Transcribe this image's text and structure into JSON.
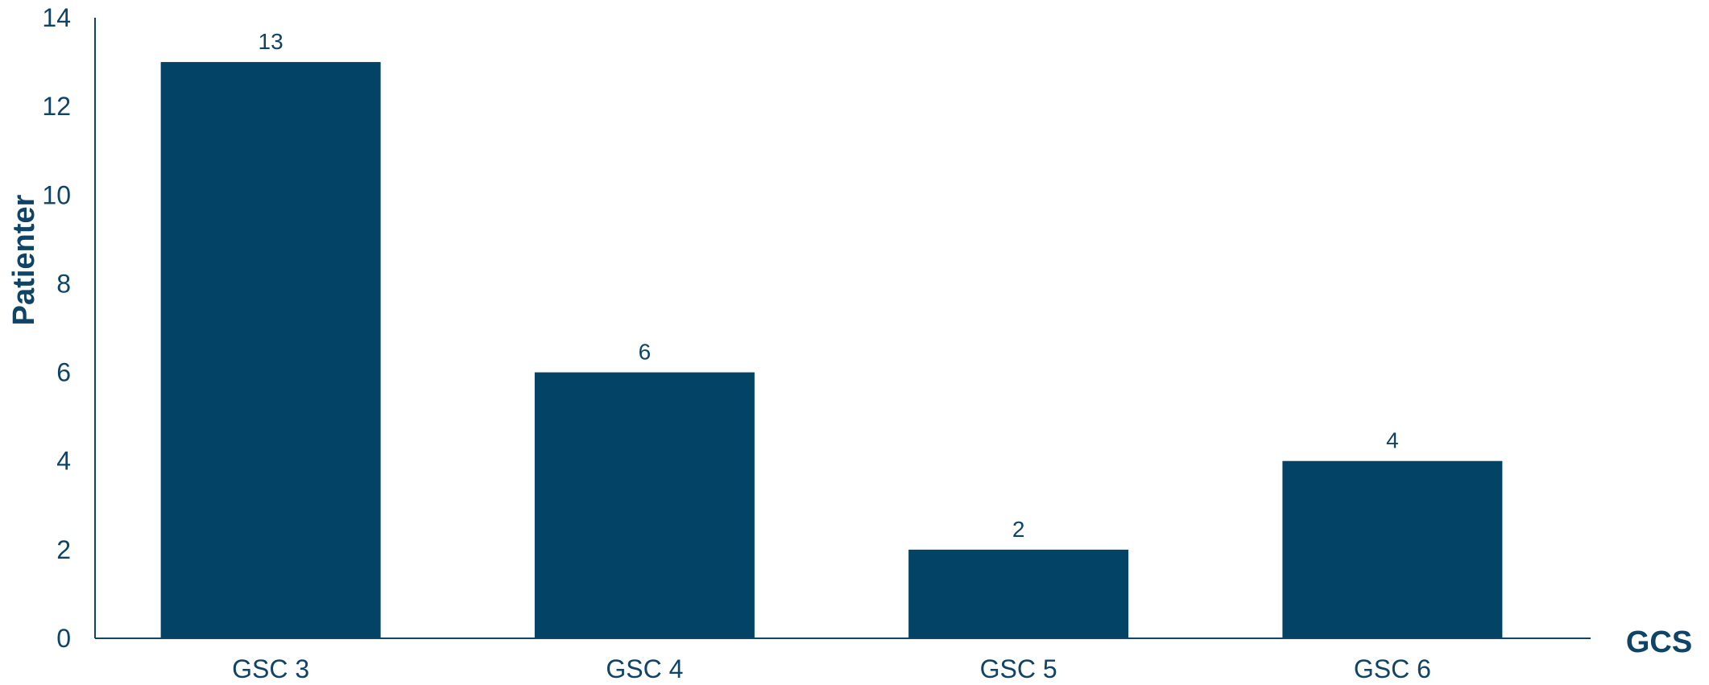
{
  "chart_data": {
    "type": "bar",
    "categories": [
      "GSC 3",
      "GSC 4",
      "GSC 5",
      "GSC 6"
    ],
    "values": [
      13,
      6,
      2,
      4
    ],
    "data_labels": [
      "13",
      "6",
      "2",
      "4"
    ],
    "xlabel": "GCS",
    "ylabel": "Patienter",
    "ylim": [
      0,
      14
    ],
    "yticks": [
      0,
      2,
      4,
      6,
      8,
      10,
      12,
      14
    ],
    "grid": false,
    "legend": "none",
    "colors": {
      "bar": "#034466",
      "text": "#0f4466",
      "axis": "#0f4466"
    }
  }
}
